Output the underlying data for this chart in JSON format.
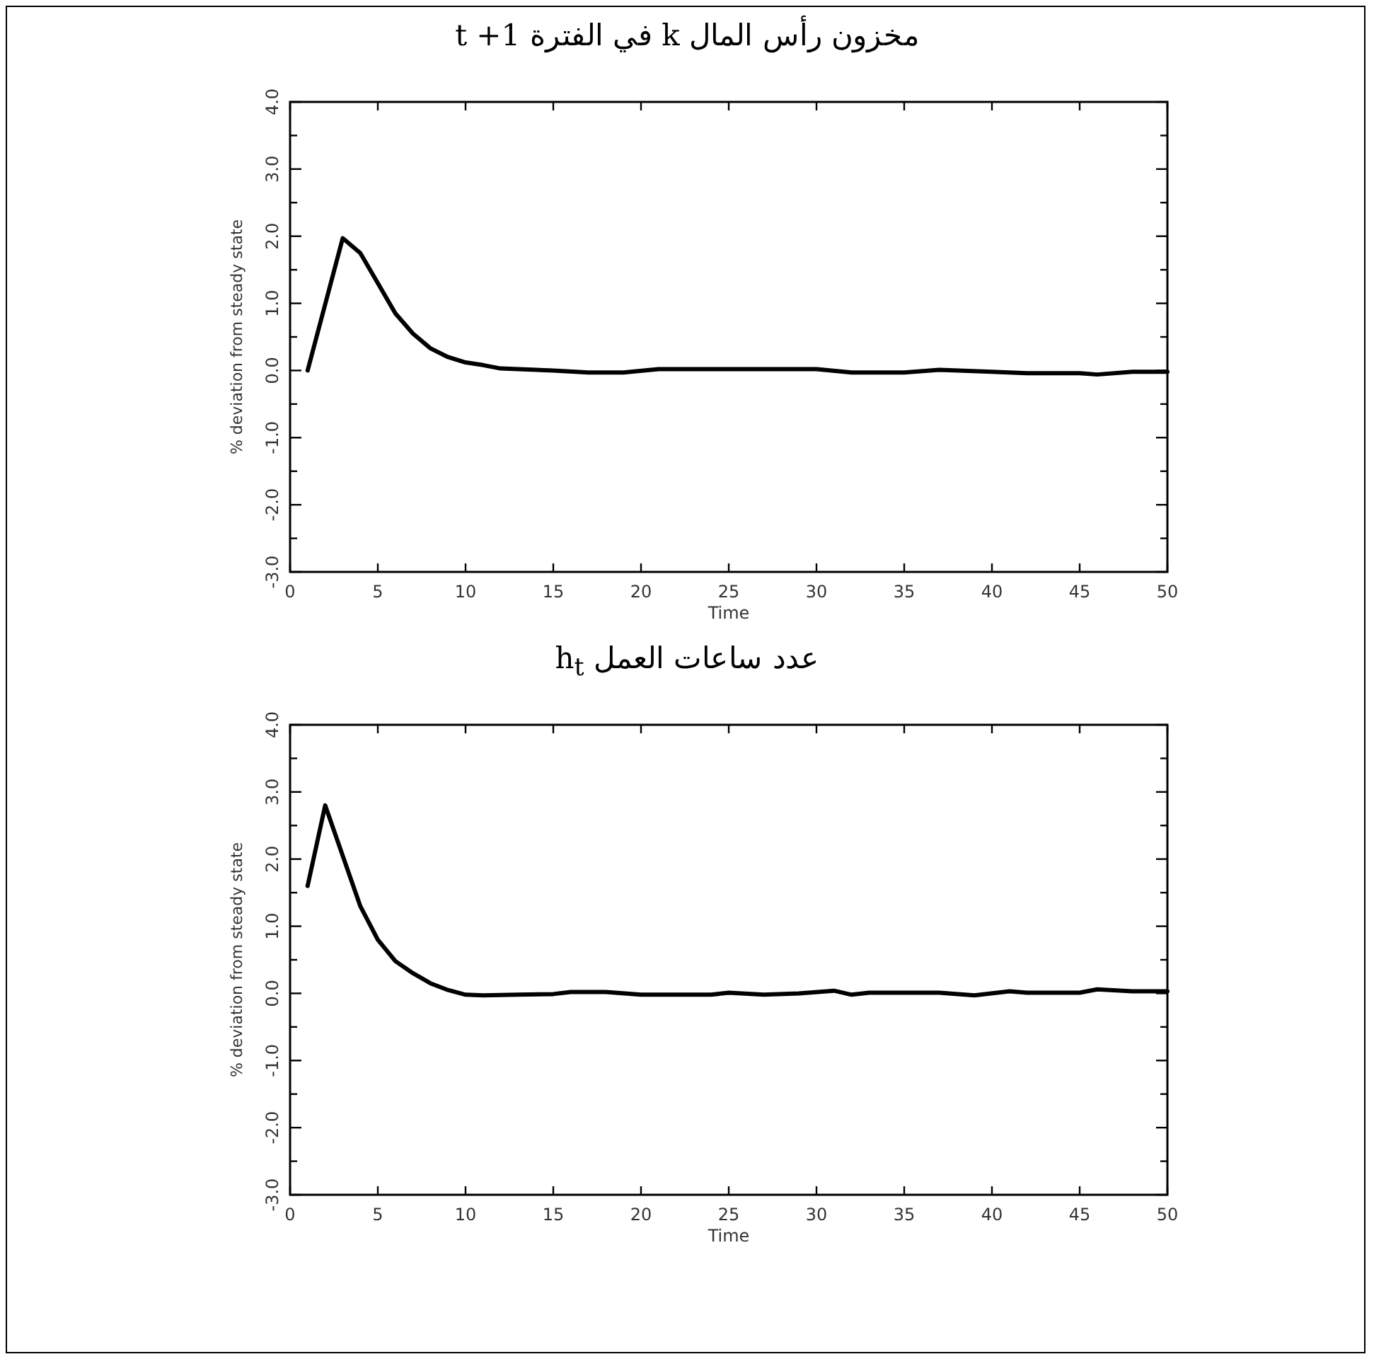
{
  "chart_data": [
    {
      "type": "line",
      "title": "مخزون رأس المال k في الفترة t +1",
      "xlabel": "Time",
      "ylabel": "% deviation from steady state",
      "xlim": [
        0,
        50
      ],
      "xticks": [
        0,
        5,
        10,
        15,
        20,
        25,
        30,
        35,
        40,
        45,
        50
      ],
      "ylim": [
        -3,
        4
      ],
      "yticks": [
        {
          "value": -3,
          "label": "-3.0"
        },
        {
          "value": -2.5,
          "label": null
        },
        {
          "value": -2,
          "label": "-2.0"
        },
        {
          "value": -1.5,
          "label": null
        },
        {
          "value": -1,
          "label": "-1.0"
        },
        {
          "value": -0.5,
          "label": null
        },
        {
          "value": 0,
          "label": "0.0"
        },
        {
          "value": 0.5,
          "label": null
        },
        {
          "value": 1,
          "label": "1.0"
        },
        {
          "value": 1.5,
          "label": null
        },
        {
          "value": 2,
          "label": "2.0"
        },
        {
          "value": 2.5,
          "label": null
        },
        {
          "value": 3,
          "label": "3.0"
        },
        {
          "value": 3.5,
          "label": null
        },
        {
          "value": 4,
          "label": "4.0"
        }
      ],
      "series": [
        {
          "color": "#000000",
          "x": [
            1,
            3,
            4,
            5,
            6,
            7,
            8,
            9,
            10,
            11,
            12,
            15,
            17,
            19,
            21,
            30,
            32,
            35,
            37,
            40,
            42,
            45,
            46,
            48,
            50
          ],
          "values": [
            0,
            1.97,
            1.75,
            1.3,
            0.85,
            0.55,
            0.33,
            0.2,
            0.12,
            0.08,
            0.03,
            0,
            -0.03,
            -0.03,
            0.02,
            0.02,
            -0.03,
            -0.03,
            0.01,
            -0.02,
            -0.04,
            -0.04,
            -0.06,
            -0.02,
            -0.02
          ]
        }
      ]
    },
    {
      "type": "line",
      "title": "عدد ساعات العمل h$_{t}$",
      "xlabel": "Time",
      "ylabel": "% deviation from steady state",
      "xlim": [
        0,
        50
      ],
      "xticks": [
        0,
        5,
        10,
        15,
        20,
        25,
        30,
        35,
        40,
        45,
        50
      ],
      "ylim": [
        -3,
        4
      ],
      "yticks": [
        {
          "value": -3,
          "label": "-3.0"
        },
        {
          "value": -2.5,
          "label": null
        },
        {
          "value": -2,
          "label": "-2.0"
        },
        {
          "value": -1.5,
          "label": null
        },
        {
          "value": -1,
          "label": "-1.0"
        },
        {
          "value": -0.5,
          "label": null
        },
        {
          "value": 0,
          "label": "0.0"
        },
        {
          "value": 0.5,
          "label": null
        },
        {
          "value": 1,
          "label": "1.0"
        },
        {
          "value": 1.5,
          "label": null
        },
        {
          "value": 2,
          "label": "2.0"
        },
        {
          "value": 2.5,
          "label": null
        },
        {
          "value": 3,
          "label": "3.0"
        },
        {
          "value": 3.5,
          "label": null
        },
        {
          "value": 4,
          "label": "4.0"
        }
      ],
      "series": [
        {
          "color": "#000000",
          "x": [
            1,
            2,
            3,
            4,
            5,
            6,
            7,
            8,
            9,
            10,
            11,
            13,
            15,
            16,
            18,
            20,
            24,
            25,
            27,
            29,
            31,
            32,
            33,
            37,
            39,
            41,
            42,
            45,
            46,
            48,
            50
          ],
          "values": [
            1.6,
            2.8,
            2.05,
            1.3,
            0.8,
            0.48,
            0.3,
            0.15,
            0.05,
            -0.02,
            -0.03,
            -0.02,
            -0.01,
            0.02,
            0.02,
            -0.02,
            -0.02,
            0.01,
            -0.02,
            0,
            0.04,
            -0.02,
            0.01,
            0.01,
            -0.03,
            0.03,
            0.01,
            0.01,
            0.06,
            0.03,
            0.03
          ]
        }
      ]
    }
  ]
}
